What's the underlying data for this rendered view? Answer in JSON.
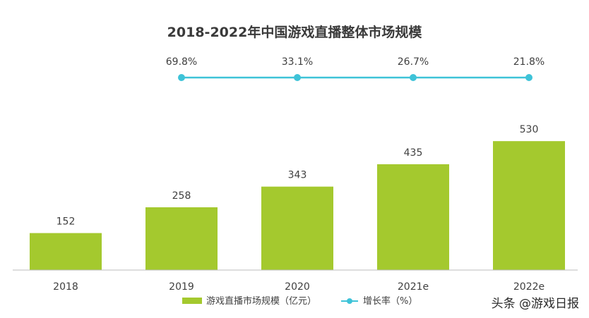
{
  "chart_data": {
    "type": "bar",
    "title": "2018-2022年中国游戏直播整体市场规模",
    "categories": [
      "2018",
      "2019",
      "2020",
      "2021e",
      "2022e"
    ],
    "series": [
      {
        "name": "游戏直播市场规模（亿元）",
        "type": "bar",
        "values": [
          152,
          258,
          343,
          435,
          530
        ],
        "labels": [
          "152",
          "258",
          "343",
          "435",
          "530"
        ],
        "color": "#a4c92e"
      },
      {
        "name": "增长率（%）",
        "type": "line",
        "values": [
          null,
          69.8,
          33.1,
          26.7,
          21.8
        ],
        "labels": [
          "",
          "69.8%",
          "33.1%",
          "26.7%",
          "21.8%"
        ],
        "color": "#3ec3d8"
      }
    ],
    "ylim": [
      0,
      600
    ],
    "grid": false,
    "legend_position": "bottom"
  },
  "watermark": "头条 @游戏日报"
}
